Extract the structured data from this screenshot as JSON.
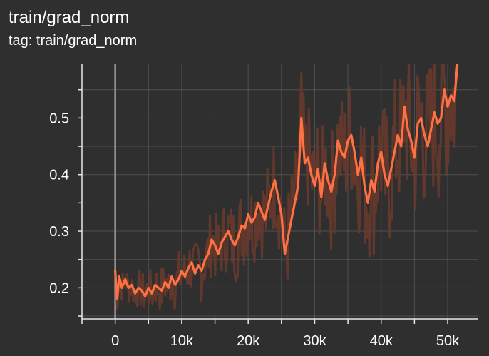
{
  "header": {
    "title": "train/grad_norm",
    "subtitle": "tag: train/grad_norm"
  },
  "colors": {
    "background": "#2f2f2f",
    "grid": "#6a6a6a",
    "axis": "#e8e8e8",
    "zero_line": "#9a9a9a",
    "smoothed": "#ff7043",
    "raw": "#6b3a2c"
  },
  "chart_data": {
    "type": "line",
    "title": "train/grad_norm",
    "subtitle": "tag: train/grad_norm",
    "xlabel": "",
    "ylabel": "",
    "xlim": [
      -5000,
      54500
    ],
    "ylim": [
      0.145,
      0.595
    ],
    "x_ticks": [
      0,
      10000,
      20000,
      30000,
      40000,
      50000
    ],
    "x_tick_labels": [
      "0",
      "10k",
      "20k",
      "30k",
      "40k",
      "50k"
    ],
    "y_ticks": [
      0.2,
      0.3,
      0.4,
      0.5
    ],
    "y_tick_labels": [
      "0.2",
      "0.3",
      "0.4",
      "0.5"
    ],
    "grid": true,
    "legend": "none",
    "series": [
      {
        "role": "smoothed",
        "color": "#ff7043",
        "points": [
          [
            0,
            0.23
          ],
          [
            300,
            0.18
          ],
          [
            600,
            0.22
          ],
          [
            1000,
            0.2
          ],
          [
            1500,
            0.215
          ],
          [
            2000,
            0.2
          ],
          [
            2500,
            0.205
          ],
          [
            3000,
            0.19
          ],
          [
            3500,
            0.2
          ],
          [
            4000,
            0.195
          ],
          [
            4500,
            0.185
          ],
          [
            5000,
            0.2
          ],
          [
            5500,
            0.19
          ],
          [
            6000,
            0.205
          ],
          [
            6500,
            0.2
          ],
          [
            7000,
            0.195
          ],
          [
            7500,
            0.21
          ],
          [
            8000,
            0.2
          ],
          [
            8500,
            0.22
          ],
          [
            9000,
            0.205
          ],
          [
            9500,
            0.215
          ],
          [
            10000,
            0.23
          ],
          [
            10500,
            0.22
          ],
          [
            11000,
            0.235
          ],
          [
            11500,
            0.245
          ],
          [
            12000,
            0.225
          ],
          [
            12500,
            0.24
          ],
          [
            13000,
            0.23
          ],
          [
            13500,
            0.25
          ],
          [
            14000,
            0.26
          ],
          [
            14500,
            0.285
          ],
          [
            15000,
            0.275
          ],
          [
            15500,
            0.26
          ],
          [
            16000,
            0.28
          ],
          [
            16500,
            0.29
          ],
          [
            17000,
            0.3
          ],
          [
            17500,
            0.285
          ],
          [
            18000,
            0.275
          ],
          [
            18500,
            0.29
          ],
          [
            19000,
            0.31
          ],
          [
            19500,
            0.305
          ],
          [
            20000,
            0.33
          ],
          [
            20500,
            0.315
          ],
          [
            21000,
            0.325
          ],
          [
            21500,
            0.35
          ],
          [
            22000,
            0.335
          ],
          [
            22500,
            0.32
          ],
          [
            23000,
            0.345
          ],
          [
            23500,
            0.37
          ],
          [
            24000,
            0.39
          ],
          [
            24500,
            0.36
          ],
          [
            25000,
            0.33
          ],
          [
            25500,
            0.26
          ],
          [
            26000,
            0.29
          ],
          [
            26500,
            0.32
          ],
          [
            27000,
            0.35
          ],
          [
            27500,
            0.38
          ],
          [
            28000,
            0.5
          ],
          [
            28500,
            0.42
          ],
          [
            29000,
            0.43
          ],
          [
            29500,
            0.4
          ],
          [
            30000,
            0.38
          ],
          [
            30500,
            0.41
          ],
          [
            31000,
            0.36
          ],
          [
            31500,
            0.42
          ],
          [
            32000,
            0.39
          ],
          [
            32500,
            0.37
          ],
          [
            33000,
            0.4
          ],
          [
            33500,
            0.46
          ],
          [
            34000,
            0.44
          ],
          [
            34500,
            0.43
          ],
          [
            35000,
            0.46
          ],
          [
            35500,
            0.47
          ],
          [
            36000,
            0.44
          ],
          [
            36500,
            0.4
          ],
          [
            37000,
            0.43
          ],
          [
            37500,
            0.38
          ],
          [
            38000,
            0.35
          ],
          [
            38500,
            0.39
          ],
          [
            39000,
            0.37
          ],
          [
            39500,
            0.42
          ],
          [
            40000,
            0.44
          ],
          [
            40500,
            0.4
          ],
          [
            41000,
            0.38
          ],
          [
            41500,
            0.41
          ],
          [
            42000,
            0.44
          ],
          [
            42500,
            0.47
          ],
          [
            43000,
            0.45
          ],
          [
            43500,
            0.52
          ],
          [
            44000,
            0.48
          ],
          [
            44500,
            0.46
          ],
          [
            45000,
            0.43
          ],
          [
            45500,
            0.49
          ],
          [
            46000,
            0.5
          ],
          [
            46500,
            0.47
          ],
          [
            47000,
            0.45
          ],
          [
            47500,
            0.48
          ],
          [
            48000,
            0.51
          ],
          [
            48500,
            0.49
          ],
          [
            49000,
            0.5
          ],
          [
            49500,
            0.55
          ],
          [
            50000,
            0.52
          ],
          [
            50500,
            0.54
          ],
          [
            51000,
            0.53
          ],
          [
            51500,
            0.6
          ]
        ]
      }
    ]
  }
}
